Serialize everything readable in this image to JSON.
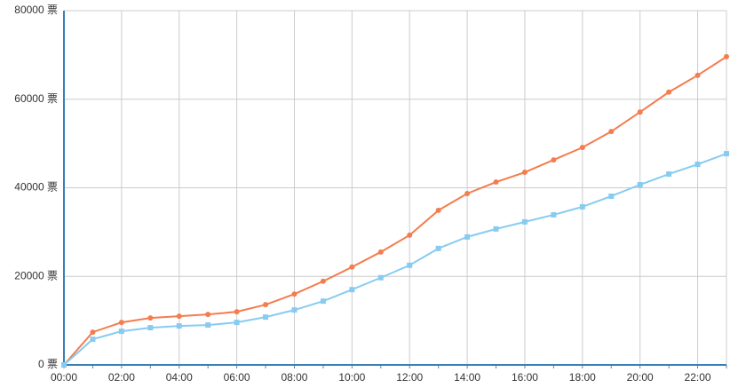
{
  "chart_data": {
    "type": "line",
    "categories": [
      "00:00",
      null,
      "02:00",
      null,
      "04:00",
      null,
      "06:00",
      null,
      "08:00",
      null,
      "10:00",
      null,
      "12:00",
      null,
      "14:00",
      null,
      "16:00",
      null,
      "18:00",
      null,
      "20:00",
      null,
      "22:00",
      null
    ],
    "series": [
      {
        "color": "#f47c4e",
        "marker": "circle",
        "values": [
          0,
          7400,
          9600,
          10600,
          11000,
          11400,
          12000,
          13600,
          16000,
          18900,
          22100,
          25500,
          29300,
          34900,
          38700,
          41300,
          43500,
          46300,
          49100,
          52700,
          57100,
          61600,
          65400,
          69600
        ]
      },
      {
        "color": "#87ccf0",
        "marker": "square",
        "values": [
          0,
          5800,
          7600,
          8400,
          8800,
          9000,
          9600,
          10800,
          12400,
          14400,
          17000,
          19700,
          22500,
          26300,
          28900,
          30700,
          32300,
          33900,
          35700,
          38100,
          40700,
          43100,
          45300,
          47700
        ]
      }
    ],
    "ylim": [
      0,
      80000
    ],
    "yticks": [
      {
        "value": 0,
        "label": "0 票"
      },
      {
        "value": 20000,
        "label": "20000 票"
      },
      {
        "value": 40000,
        "label": "40000 票"
      },
      {
        "value": 60000,
        "label": "60000 票"
      },
      {
        "value": 80000,
        "label": "80000 票"
      }
    ],
    "grid": true
  }
}
